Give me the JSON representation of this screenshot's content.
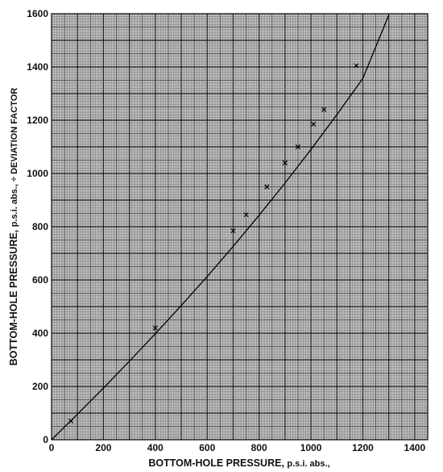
{
  "chart_data": {
    "type": "line",
    "title": "",
    "xlabel": "BOTTOM-HOLE PRESSURE,",
    "xlabel_unit": "p.s.i. abs.,",
    "ylabel": "BOTTOM-HOLE PRESSURE,",
    "ylabel_unit": "p.s.i. abs., ÷ DEVIATION FACTOR",
    "xlim": [
      0,
      1450
    ],
    "ylim": [
      0,
      1600
    ],
    "x_ticks": [
      0,
      200,
      400,
      600,
      800,
      1000,
      1200,
      1400
    ],
    "y_ticks": [
      0,
      200,
      400,
      600,
      800,
      1000,
      1200,
      1400,
      1600
    ],
    "grid": true,
    "legend": "none",
    "series": [
      {
        "style": "solid",
        "color": "#000000",
        "x": [
          0,
          100,
          200,
          300,
          400,
          500,
          600,
          700,
          800,
          900,
          1000,
          1100,
          1200,
          1300
        ],
        "y": [
          0,
          96,
          194,
          295,
          398,
          504,
          613,
          726,
          843,
          964,
          1090,
          1221,
          1357,
          1595
        ]
      },
      {
        "style": "markers",
        "marker": "x",
        "color": "#000000",
        "x": [
          75,
          400,
          700,
          750,
          830,
          900,
          950,
          1010,
          1050,
          1175
        ],
        "y": [
          70,
          420,
          785,
          845,
          950,
          1040,
          1100,
          1185,
          1240,
          1405
        ]
      }
    ]
  }
}
